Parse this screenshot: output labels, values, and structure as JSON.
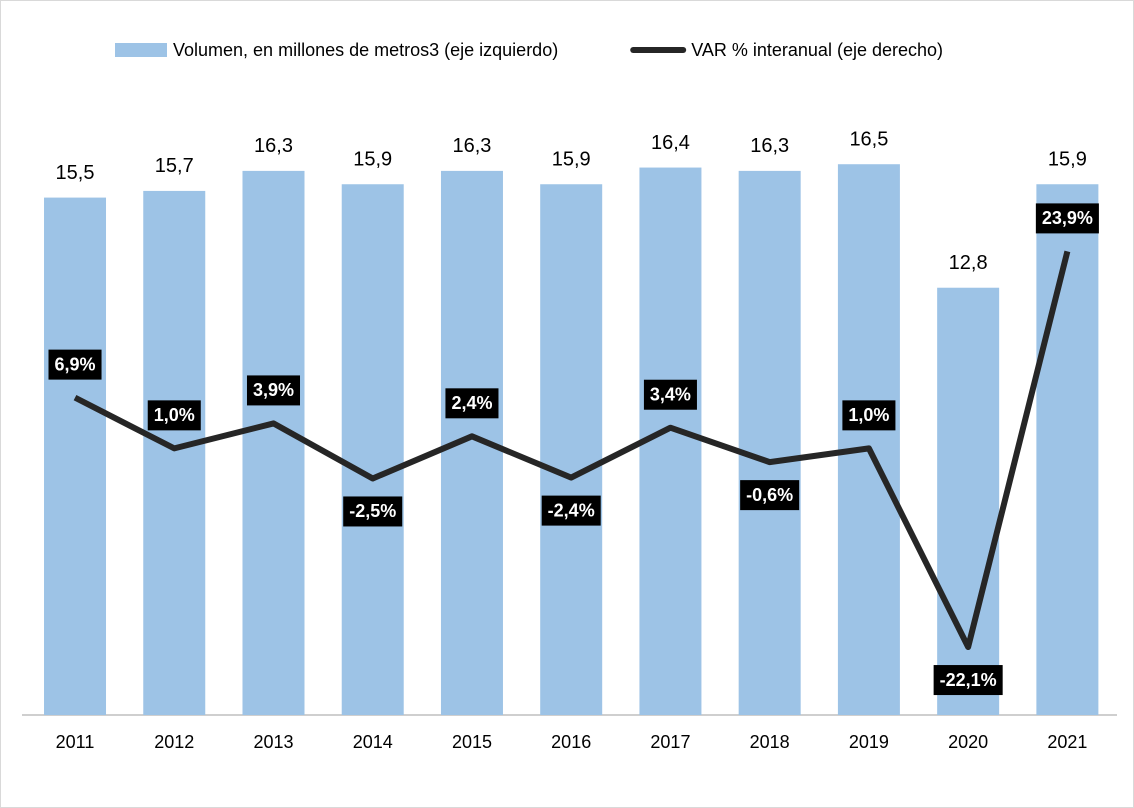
{
  "chart_data": {
    "type": "bar",
    "categories": [
      "2011",
      "2012",
      "2013",
      "2014",
      "2015",
      "2016",
      "2017",
      "2018",
      "2019",
      "2020",
      "2021"
    ],
    "series": [
      {
        "name": "Volumen, en millones de metros3 (eje izquierdo)",
        "type": "bar",
        "color": "#9dc3e6",
        "values": [
          15.5,
          15.7,
          16.3,
          15.9,
          16.3,
          15.9,
          16.4,
          16.3,
          16.5,
          12.8,
          15.9
        ],
        "value_labels": [
          "15,5",
          "15,7",
          "16,3",
          "15,9",
          "16,3",
          "15,9",
          "16,4",
          "16,3",
          "16,5",
          "12,8",
          "15,9"
        ]
      },
      {
        "name": "VAR % interanual (eje derecho)",
        "type": "line",
        "axis": "y2",
        "color": "#262626",
        "values": [
          6.9,
          1.0,
          3.9,
          -2.5,
          2.4,
          -2.4,
          3.4,
          -0.6,
          1.0,
          -22.1,
          23.9
        ],
        "value_labels": [
          "6,9%",
          "1,0%",
          "3,9%",
          "-2,5%",
          "2,4%",
          "-2,4%",
          "3,4%",
          "-0,6%",
          "1,0%",
          "-22,1%",
          "23,9%"
        ]
      }
    ],
    "ylim": [
      0,
      21
    ],
    "y2lim": [
      -30,
      51.5
    ],
    "legend": "top"
  }
}
